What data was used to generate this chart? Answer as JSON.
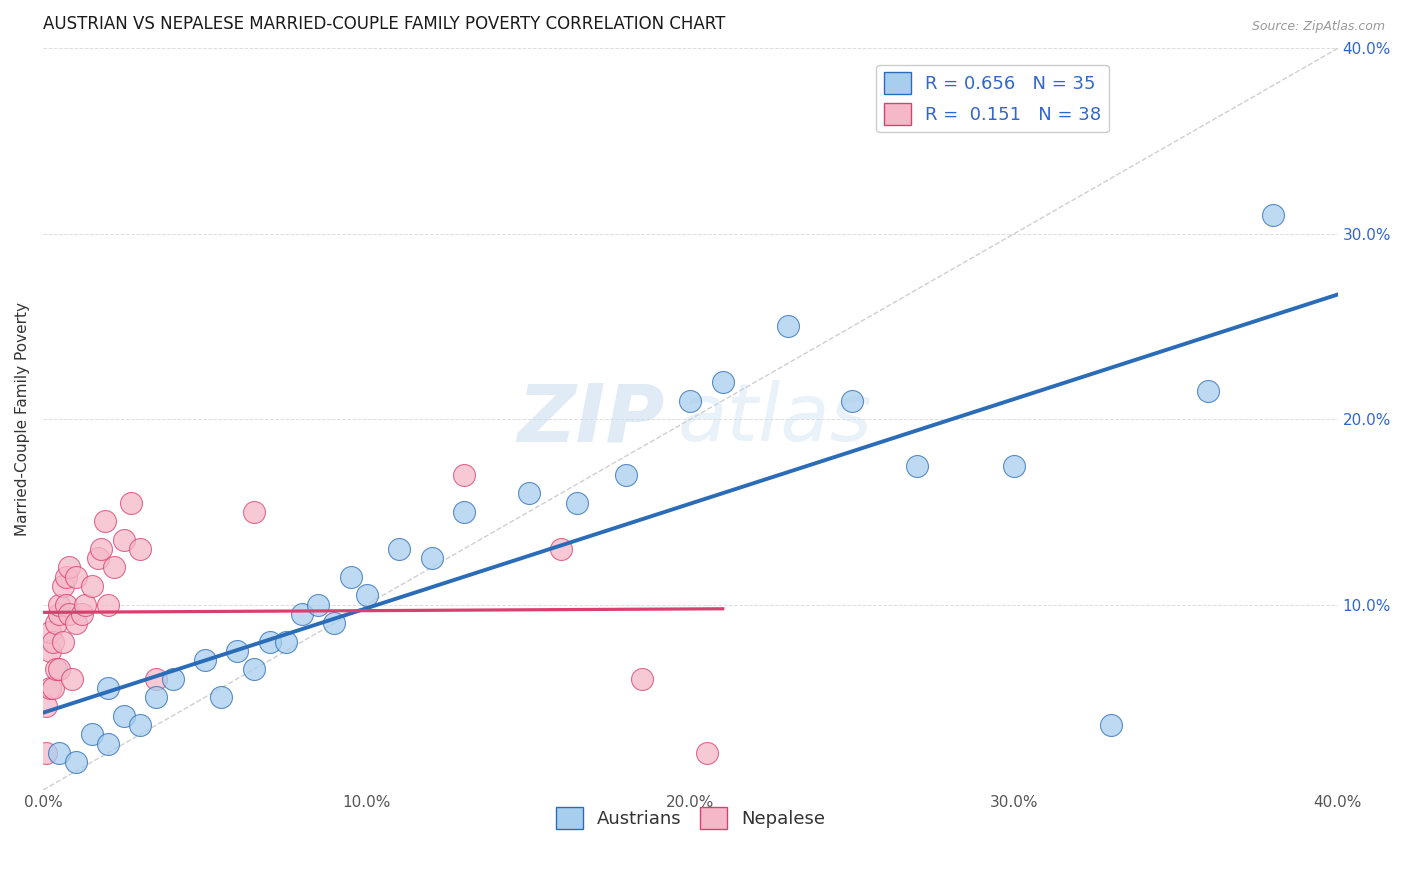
{
  "title": "AUSTRIAN VS NEPALESE MARRIED-COUPLE FAMILY POVERTY CORRELATION CHART",
  "source": "Source: ZipAtlas.com",
  "ylabel": "Married-Couple Family Poverty",
  "xlim": [
    0.0,
    0.4
  ],
  "ylim": [
    0.0,
    0.4
  ],
  "xticks": [
    0.0,
    0.1,
    0.2,
    0.3,
    0.4
  ],
  "yticks": [
    0.0,
    0.1,
    0.2,
    0.3,
    0.4
  ],
  "xticklabels": [
    "0.0%",
    "10.0%",
    "20.0%",
    "30.0%",
    "40.0%"
  ],
  "right_yticklabels": [
    "",
    "10.0%",
    "20.0%",
    "30.0%",
    "40.0%"
  ],
  "austrians_R": "0.656",
  "austrians_N": "35",
  "nepalese_R": "0.151",
  "nepalese_N": "38",
  "austrian_color": "#A8CEEE",
  "nepalese_color": "#F5B8C8",
  "trendline_austrian_color": "#2B6CB8",
  "trendline_nepalese_color": "#D94070",
  "diagonal_color": "#BBBBBB",
  "austrians_x": [
    0.005,
    0.01,
    0.015,
    0.02,
    0.02,
    0.025,
    0.03,
    0.035,
    0.04,
    0.05,
    0.055,
    0.06,
    0.065,
    0.07,
    0.075,
    0.08,
    0.085,
    0.09,
    0.095,
    0.1,
    0.11,
    0.12,
    0.13,
    0.15,
    0.165,
    0.18,
    0.2,
    0.21,
    0.23,
    0.25,
    0.27,
    0.3,
    0.33,
    0.36,
    0.38
  ],
  "austrians_y": [
    0.02,
    0.015,
    0.03,
    0.025,
    0.055,
    0.04,
    0.035,
    0.05,
    0.06,
    0.07,
    0.05,
    0.075,
    0.065,
    0.08,
    0.08,
    0.095,
    0.1,
    0.09,
    0.115,
    0.105,
    0.13,
    0.125,
    0.15,
    0.16,
    0.155,
    0.17,
    0.21,
    0.22,
    0.25,
    0.21,
    0.175,
    0.175,
    0.035,
    0.215,
    0.31
  ],
  "nepalese_x": [
    0.001,
    0.001,
    0.002,
    0.002,
    0.002,
    0.003,
    0.003,
    0.004,
    0.004,
    0.005,
    0.005,
    0.005,
    0.006,
    0.006,
    0.007,
    0.007,
    0.008,
    0.008,
    0.009,
    0.01,
    0.01,
    0.012,
    0.013,
    0.015,
    0.017,
    0.018,
    0.019,
    0.02,
    0.022,
    0.025,
    0.027,
    0.03,
    0.035,
    0.065,
    0.13,
    0.16,
    0.185,
    0.205
  ],
  "nepalese_y": [
    0.02,
    0.045,
    0.055,
    0.075,
    0.085,
    0.055,
    0.08,
    0.065,
    0.09,
    0.065,
    0.095,
    0.1,
    0.08,
    0.11,
    0.1,
    0.115,
    0.095,
    0.12,
    0.06,
    0.09,
    0.115,
    0.095,
    0.1,
    0.11,
    0.125,
    0.13,
    0.145,
    0.1,
    0.12,
    0.135,
    0.155,
    0.13,
    0.06,
    0.15,
    0.17,
    0.13,
    0.06,
    0.02
  ],
  "watermark_zip": "ZIP",
  "watermark_atlas": "atlas",
  "background_color": "#FFFFFF",
  "grid_color": "#DDDDDD",
  "title_fontsize": 12,
  "label_fontsize": 11,
  "tick_fontsize": 11,
  "legend_fontsize": 13
}
